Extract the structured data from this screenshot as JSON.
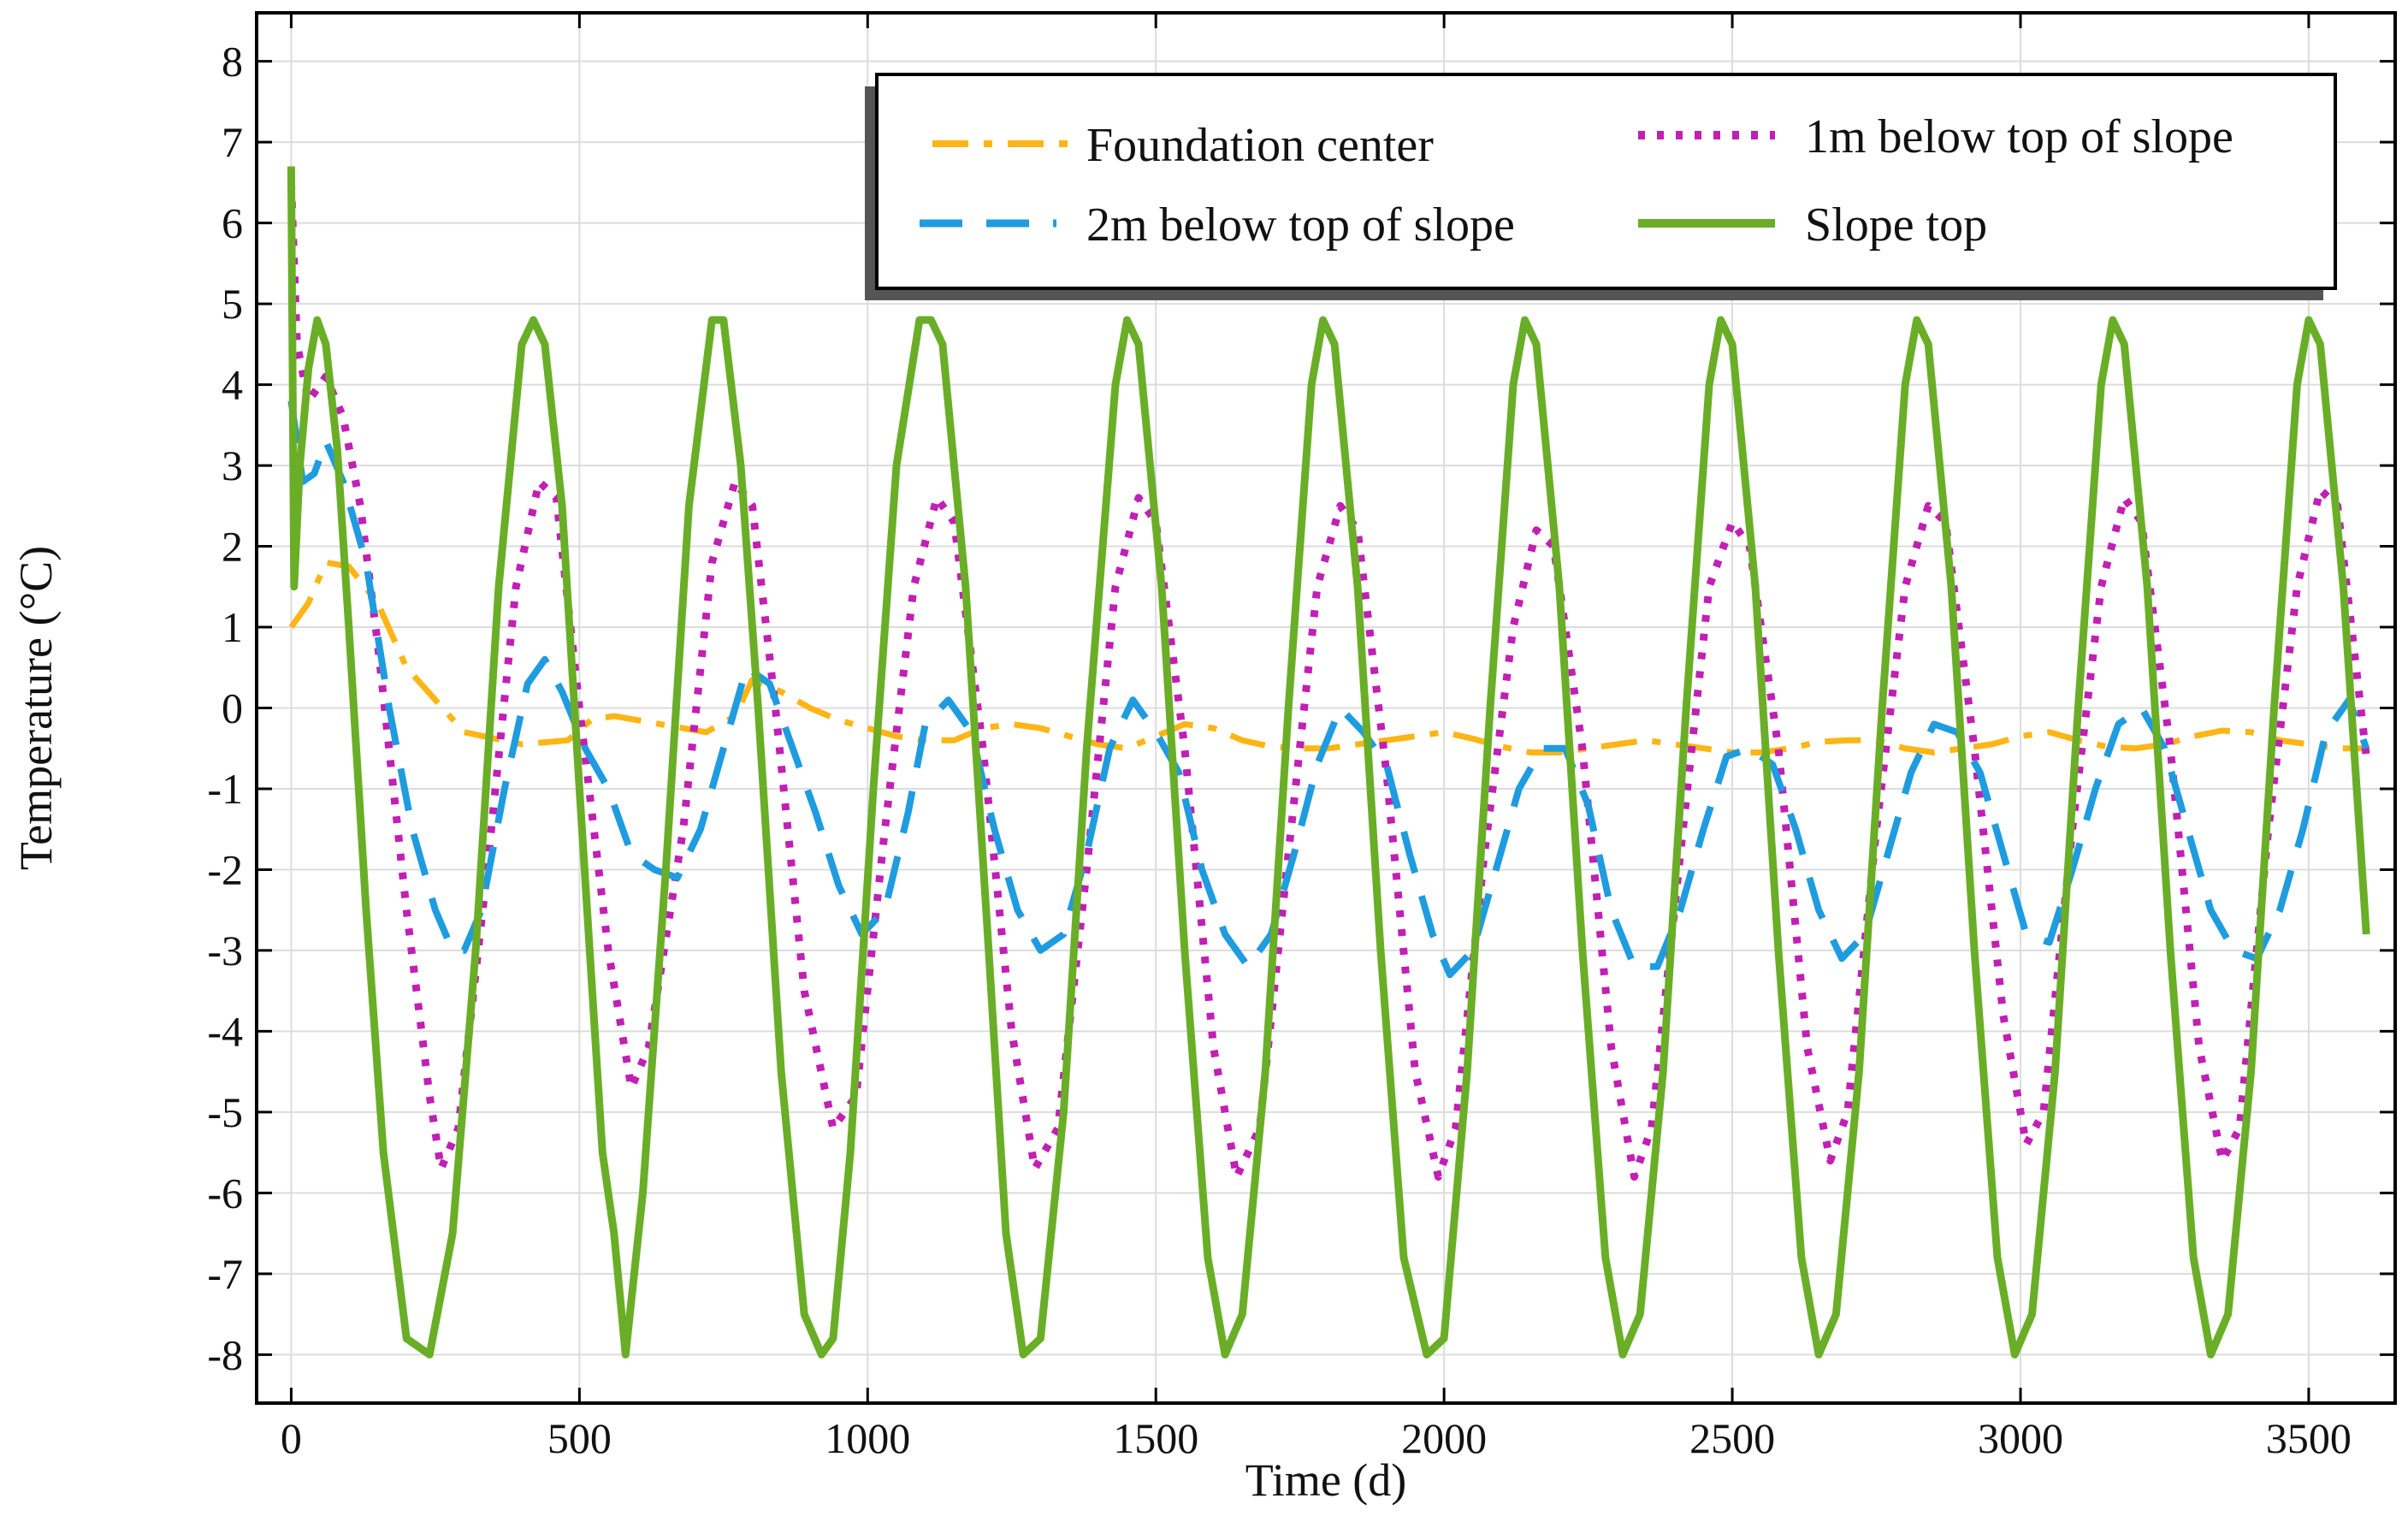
{
  "chart_data": {
    "type": "line",
    "title": "",
    "xlabel": "Time (d)",
    "ylabel": "Temperature (°C)",
    "xlim": [
      -60,
      3650
    ],
    "ylim": [
      -8.6,
      8.6
    ],
    "xticks": [
      0,
      500,
      1000,
      1500,
      2000,
      2500,
      3000,
      3500
    ],
    "yticks": [
      -8,
      -7,
      -6,
      -5,
      -4,
      -3,
      -2,
      -1,
      0,
      1,
      2,
      3,
      4,
      5,
      6,
      7,
      8
    ],
    "grid": true,
    "legend_position": "top-right",
    "series": [
      {
        "name": "Foundation center",
        "color": "#FDB515",
        "style": "dashdot",
        "x": [
          0,
          30,
          60,
          100,
          150,
          200,
          300,
          400,
          480,
          520,
          560,
          640,
          720,
          770,
          800,
          850,
          900,
          950,
          1000,
          1050,
          1100,
          1150,
          1200,
          1250,
          1300,
          1350,
          1400,
          1450,
          1500,
          1550,
          1600,
          1650,
          1700,
          1750,
          1800,
          1850,
          1900,
          1950,
          2000,
          2050,
          2100,
          2150,
          2200,
          2250,
          2300,
          2350,
          2400,
          2450,
          2500,
          2550,
          2600,
          2650,
          2700,
          2750,
          2800,
          2850,
          2900,
          2950,
          3000,
          3050,
          3100,
          3150,
          3200,
          3250,
          3300,
          3350,
          3400,
          3450,
          3500,
          3550,
          3600
        ],
        "y": [
          1.0,
          1.3,
          1.8,
          1.75,
          1.3,
          0.5,
          -0.3,
          -0.45,
          -0.4,
          -0.15,
          -0.1,
          -0.2,
          -0.3,
          -0.1,
          0.35,
          0.2,
          0.0,
          -0.15,
          -0.25,
          -0.35,
          -0.4,
          -0.4,
          -0.25,
          -0.2,
          -0.25,
          -0.35,
          -0.45,
          -0.5,
          -0.35,
          -0.2,
          -0.25,
          -0.4,
          -0.48,
          -0.5,
          -0.5,
          -0.45,
          -0.4,
          -0.35,
          -0.3,
          -0.38,
          -0.48,
          -0.55,
          -0.55,
          -0.5,
          -0.45,
          -0.4,
          -0.45,
          -0.5,
          -0.55,
          -0.55,
          -0.5,
          -0.42,
          -0.4,
          -0.4,
          -0.5,
          -0.55,
          -0.5,
          -0.45,
          -0.35,
          -0.3,
          -0.4,
          -0.48,
          -0.5,
          -0.45,
          -0.35,
          -0.28,
          -0.3,
          -0.4,
          -0.45,
          -0.5,
          -0.5
        ]
      },
      {
        "name": "1m below top of slope",
        "color": "#C21FB5",
        "style": "dotted",
        "x": [
          0,
          10,
          30,
          60,
          90,
          120,
          150,
          200,
          240,
          260,
          290,
          340,
          390,
          430,
          460,
          500,
          550,
          590,
          620,
          680,
          730,
          770,
          800,
          840,
          890,
          940,
          980,
          1030,
          1080,
          1120,
          1150,
          1200,
          1250,
          1290,
          1330,
          1380,
          1430,
          1470,
          1500,
          1550,
          1600,
          1640,
          1680,
          1730,
          1780,
          1820,
          1850,
          1900,
          1950,
          1990,
          2020,
          2070,
          2120,
          2160,
          2190,
          2240,
          2290,
          2330,
          2360,
          2410,
          2460,
          2500,
          2530,
          2580,
          2630,
          2670,
          2700,
          2750,
          2800,
          2840,
          2870,
          2920,
          2970,
          3010,
          3040,
          3090,
          3140,
          3180,
          3210,
          3260,
          3310,
          3350,
          3380,
          3430,
          3480,
          3520,
          3550,
          3600
        ],
        "y": [
          6.5,
          4.5,
          3.8,
          4.1,
          3.6,
          2.5,
          0.8,
          -2.5,
          -4.8,
          -5.7,
          -5.2,
          -2.0,
          1.5,
          2.8,
          2.6,
          0.0,
          -3.0,
          -4.7,
          -4.2,
          -1.5,
          1.8,
          2.8,
          2.5,
          0.0,
          -3.5,
          -5.2,
          -4.8,
          -1.5,
          1.5,
          2.6,
          2.3,
          -0.5,
          -4.0,
          -5.7,
          -5.2,
          -2.0,
          1.5,
          2.6,
          2.3,
          -0.5,
          -4.2,
          -5.8,
          -5.2,
          -1.8,
          1.5,
          2.5,
          2.2,
          -0.8,
          -4.5,
          -5.8,
          -5.2,
          -1.8,
          1.0,
          2.2,
          2.0,
          -0.5,
          -4.2,
          -5.8,
          -5.2,
          -1.8,
          1.5,
          2.3,
          2.0,
          -0.5,
          -4.2,
          -5.6,
          -5.0,
          -1.5,
          1.5,
          2.5,
          2.3,
          -0.5,
          -3.8,
          -5.4,
          -5.0,
          -1.5,
          1.5,
          2.6,
          2.3,
          -0.5,
          -4.2,
          -5.6,
          -5.2,
          -1.5,
          1.5,
          2.7,
          2.5,
          -0.6
        ]
      },
      {
        "name": "2m below top of slope",
        "color": "#1F9CE0",
        "style": "dashed",
        "x": [
          0,
          20,
          40,
          60,
          90,
          130,
          170,
          210,
          250,
          280,
          300,
          330,
          370,
          410,
          440,
          470,
          510,
          550,
          590,
          630,
          670,
          710,
          750,
          790,
          830,
          870,
          910,
          950,
          990,
          1030,
          1070,
          1100,
          1140,
          1180,
          1220,
          1260,
          1300,
          1340,
          1380,
          1420,
          1460,
          1500,
          1540,
          1580,
          1620,
          1660,
          1700,
          1740,
          1780,
          1820,
          1860,
          1900,
          1940,
          1980,
          2010,
          2050,
          2090,
          2130,
          2170,
          2210,
          2250,
          2290,
          2330,
          2370,
          2410,
          2450,
          2490,
          2530,
          2570,
          2610,
          2650,
          2690,
          2730,
          2770,
          2810,
          2850,
          2890,
          2930,
          2970,
          3010,
          3050,
          3090,
          3130,
          3170,
          3210,
          3250,
          3290,
          3330,
          3370,
          3410,
          3450,
          3490,
          3530,
          3570,
          3600
        ],
        "y": [
          3.8,
          2.8,
          2.9,
          3.3,
          2.8,
          1.8,
          0.0,
          -1.5,
          -2.5,
          -3.0,
          -3.0,
          -2.5,
          -1.0,
          0.3,
          0.6,
          0.2,
          -0.5,
          -1.0,
          -1.8,
          -2.0,
          -2.1,
          -1.5,
          -0.5,
          0.5,
          0.3,
          -0.5,
          -1.3,
          -2.2,
          -2.8,
          -2.5,
          -1.3,
          -0.2,
          0.1,
          -0.3,
          -1.5,
          -2.5,
          -3.0,
          -2.8,
          -1.8,
          -0.5,
          0.1,
          -0.3,
          -0.8,
          -2.0,
          -2.8,
          -3.2,
          -2.8,
          -1.8,
          -0.7,
          0.0,
          -0.3,
          -0.7,
          -1.8,
          -2.8,
          -3.3,
          -3.0,
          -2.0,
          -1.0,
          -0.5,
          -0.5,
          -1.2,
          -2.5,
          -3.2,
          -3.2,
          -2.5,
          -1.5,
          -0.6,
          -0.5,
          -0.7,
          -1.5,
          -2.5,
          -3.1,
          -2.8,
          -1.8,
          -0.8,
          -0.2,
          -0.3,
          -0.8,
          -1.8,
          -2.8,
          -2.9,
          -2.0,
          -1.0,
          -0.2,
          0.0,
          -0.5,
          -1.5,
          -2.5,
          -3.0,
          -3.1,
          -2.5,
          -1.5,
          -0.3,
          0.1,
          -0.5
        ]
      },
      {
        "name": "Slope top",
        "color": "#6AAE27",
        "style": "solid",
        "x": [
          0,
          5,
          15,
          30,
          45,
          60,
          80,
          100,
          130,
          160,
          200,
          240,
          280,
          320,
          360,
          400,
          420,
          440,
          470,
          500,
          540,
          560,
          580,
          610,
          650,
          690,
          730,
          750,
          780,
          810,
          850,
          890,
          920,
          940,
          970,
          1010,
          1050,
          1090,
          1110,
          1130,
          1170,
          1210,
          1240,
          1270,
          1300,
          1340,
          1380,
          1430,
          1450,
          1470,
          1510,
          1550,
          1590,
          1620,
          1650,
          1690,
          1730,
          1770,
          1790,
          1810,
          1850,
          1890,
          1930,
          1970,
          2000,
          2040,
          2080,
          2120,
          2140,
          2160,
          2200,
          2240,
          2280,
          2310,
          2340,
          2380,
          2420,
          2460,
          2480,
          2500,
          2540,
          2580,
          2620,
          2650,
          2680,
          2720,
          2760,
          2800,
          2820,
          2840,
          2880,
          2920,
          2960,
          2990,
          3020,
          3060,
          3100,
          3140,
          3160,
          3180,
          3220,
          3260,
          3300,
          3330,
          3360,
          3400,
          3440,
          3480,
          3500,
          3520,
          3560,
          3600
        ],
        "y": [
          6.7,
          1.5,
          3.0,
          4.2,
          4.8,
          4.5,
          3.2,
          1.0,
          -2.5,
          -5.5,
          -7.8,
          -8.0,
          -6.5,
          -3.0,
          1.5,
          4.5,
          4.8,
          4.5,
          2.5,
          -1.0,
          -5.5,
          -6.5,
          -8.0,
          -6.0,
          -2.0,
          2.5,
          4.8,
          4.8,
          3.0,
          0.0,
          -4.5,
          -7.5,
          -8.0,
          -7.8,
          -5.5,
          -1.0,
          3.0,
          4.8,
          4.8,
          4.5,
          1.5,
          -3.0,
          -6.5,
          -8.0,
          -7.8,
          -5.0,
          -0.5,
          4.0,
          4.8,
          4.5,
          1.5,
          -3.0,
          -6.8,
          -8.0,
          -7.5,
          -4.5,
          0.0,
          4.0,
          4.8,
          4.5,
          1.5,
          -3.0,
          -6.8,
          -8.0,
          -7.8,
          -4.5,
          0.0,
          4.0,
          4.8,
          4.5,
          1.5,
          -3.0,
          -6.8,
          -8.0,
          -7.5,
          -4.5,
          0.0,
          4.0,
          4.8,
          4.5,
          1.5,
          -3.0,
          -6.8,
          -8.0,
          -7.5,
          -4.5,
          0.0,
          4.0,
          4.8,
          4.5,
          1.5,
          -3.0,
          -6.8,
          -8.0,
          -7.5,
          -4.5,
          0.0,
          4.0,
          4.8,
          4.5,
          1.5,
          -3.0,
          -6.8,
          -8.0,
          -7.5,
          -4.5,
          0.0,
          4.0,
          4.8,
          4.5,
          1.5,
          -2.8
        ]
      }
    ],
    "legend": {
      "entries": [
        {
          "label": "Foundation center",
          "series": 0
        },
        {
          "label": "1m below top of slope",
          "series": 1
        },
        {
          "label": "2m below top of slope",
          "series": 2
        },
        {
          "label": "Slope top",
          "series": 3
        }
      ]
    }
  }
}
